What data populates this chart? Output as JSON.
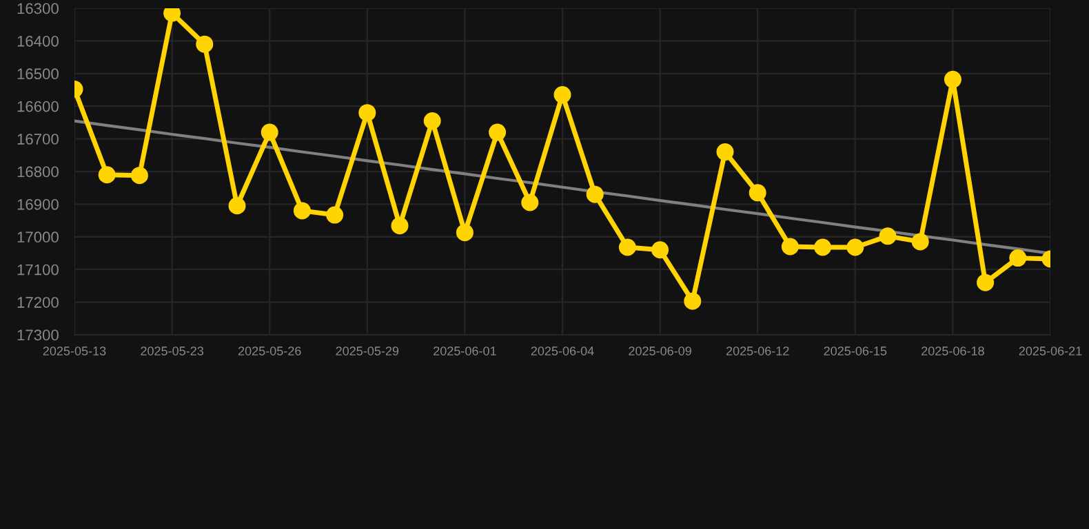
{
  "chart_data": {
    "type": "line",
    "categories": [
      "2025-05-13",
      null,
      null,
      "2025-05-23",
      null,
      null,
      "2025-05-26",
      null,
      null,
      "2025-05-29",
      null,
      null,
      "2025-06-01",
      null,
      null,
      "2025-06-04",
      null,
      null,
      "2025-06-09",
      null,
      null,
      "2025-06-12",
      null,
      null,
      "2025-06-15",
      null,
      null,
      "2025-06-18",
      null,
      null,
      "2025-06-21"
    ],
    "series": [
      {
        "color": "#ffd400",
        "marker": "circle",
        "values": [
          16548,
          16810,
          16812,
          16315,
          16410,
          16905,
          16680,
          16920,
          16933,
          16620,
          16966,
          16645,
          16987,
          16680,
          16895,
          16565,
          16870,
          17032,
          17040,
          17197,
          16740,
          16865,
          17030,
          17032,
          17032,
          16998,
          17015,
          16518,
          17140,
          17065,
          17068
        ]
      },
      {
        "type": "line",
        "color": "#808080",
        "marker": "none",
        "values": [
          16645,
          16659,
          16672,
          16686,
          16699,
          16713,
          16726,
          16740,
          16753,
          16767,
          16780,
          16794,
          16807,
          16821,
          16834,
          16848,
          16862,
          16875,
          16889,
          16902,
          16916,
          16929,
          16943,
          16956,
          16970,
          16983,
          16997,
          17010,
          17024,
          17037,
          17051
        ]
      }
    ],
    "ylim": [
      17300,
      16300
    ],
    "yticks": [
      16300,
      16400,
      16500,
      16600,
      16700,
      16800,
      16900,
      17000,
      17100,
      17200,
      17300
    ],
    "grid": true
  }
}
